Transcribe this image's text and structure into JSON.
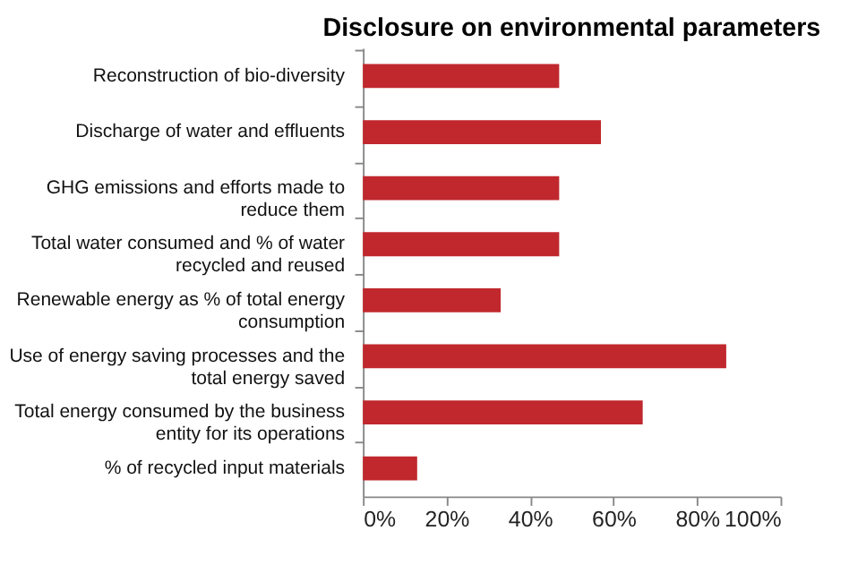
{
  "chart_data": {
    "type": "bar",
    "orientation": "horizontal",
    "title": "Disclosure on environmental parameters",
    "categories": [
      "Reconstruction of bio-diversity",
      "Discharge of water and effluents",
      "GHG emissions and efforts made to reduce them",
      "Total water consumed and % of water recycled and reused",
      "Renewable energy as % of total energy consumption",
      "Use of energy saving processes and the total energy saved",
      "Total energy consumed by the business entity for its operations",
      "% of recycled input materials"
    ],
    "values": [
      47,
      57,
      47,
      47,
      33,
      87,
      67,
      13
    ],
    "color": "#c0282d",
    "xlim": [
      0,
      100
    ],
    "xticks": [
      {
        "value": 0,
        "label": "0%"
      },
      {
        "value": 20,
        "label": "20%"
      },
      {
        "value": 40,
        "label": "40%"
      },
      {
        "value": 60,
        "label": "60%"
      },
      {
        "value": 80,
        "label": "80%"
      },
      {
        "value": 100,
        "label": "100%"
      }
    ],
    "grid": false
  }
}
